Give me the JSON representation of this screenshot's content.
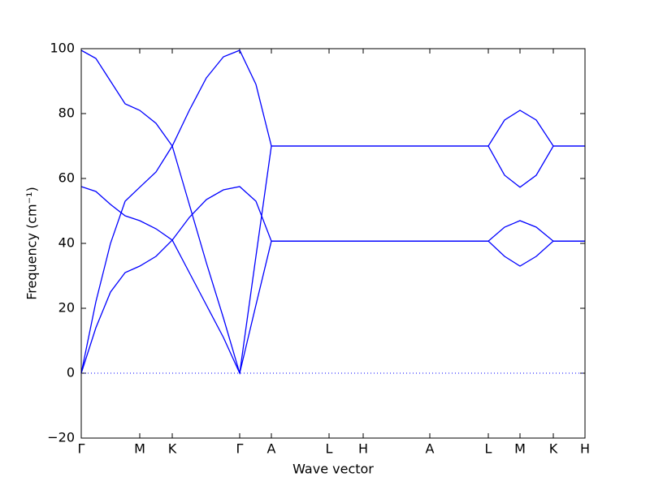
{
  "chart_data": {
    "type": "line",
    "xlabel": "Wave vector",
    "ylabel": "Frequency (cm⁻¹)",
    "x": [
      0,
      0.18,
      0.36,
      0.54,
      0.72,
      0.92,
      1.12,
      1.33,
      1.54,
      1.75,
      1.95,
      2.15,
      2.34,
      3.05,
      3.47,
      4.29,
      5.01,
      5.21,
      5.4,
      5.6,
      5.81,
      6.2
    ],
    "series": [
      {
        "color": "#0000ff",
        "values": [
          99.5,
          97,
          90,
          83,
          81,
          77,
          70,
          52,
          34,
          17,
          0,
          36,
          70,
          70,
          70,
          70,
          70,
          78,
          81,
          78,
          70,
          70
        ]
      },
      {
        "color": "#0000ff",
        "values": [
          0,
          22,
          40,
          53,
          57.3,
          62,
          70,
          81,
          91,
          97.5,
          99.5,
          89,
          70,
          70,
          70,
          70,
          70,
          61,
          57.3,
          61,
          70,
          70
        ]
      },
      {
        "color": "#0000ff",
        "values": [
          57.5,
          56,
          52,
          48.5,
          47,
          44.5,
          41,
          31,
          21,
          11,
          0,
          21,
          40.7,
          40.7,
          40.7,
          40.7,
          40.7,
          45,
          47,
          45,
          40.7,
          40.7
        ]
      },
      {
        "color": "#0000ff",
        "values": [
          0,
          14,
          25,
          31,
          33,
          36,
          41,
          48,
          53.5,
          56.5,
          57.5,
          53,
          40.7,
          40.7,
          40.7,
          40.7,
          40.7,
          36,
          33,
          36,
          40.7,
          40.7
        ]
      }
    ],
    "xlim": [
      0,
      6.2
    ],
    "xticks": [
      {
        "value": 0,
        "label": "Γ"
      },
      {
        "value": 0.72,
        "label": "M"
      },
      {
        "value": 1.12,
        "label": "K"
      },
      {
        "value": 1.95,
        "label": "Γ"
      },
      {
        "value": 2.34,
        "label": "A"
      },
      {
        "value": 3.05,
        "label": "L"
      },
      {
        "value": 3.47,
        "label": "H"
      },
      {
        "value": 4.29,
        "label": "A"
      },
      {
        "value": 5.01,
        "label": "L"
      },
      {
        "value": 5.4,
        "label": "M"
      },
      {
        "value": 5.81,
        "label": "K"
      },
      {
        "value": 6.2,
        "label": "H"
      }
    ],
    "ylim": [
      -20,
      100
    ],
    "yticks": [
      {
        "value": -20,
        "label": "−20"
      },
      0,
      20,
      40,
      60,
      80,
      100
    ],
    "hline": 0
  }
}
